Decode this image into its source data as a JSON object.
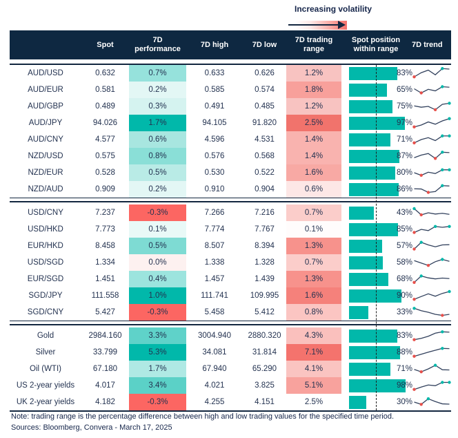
{
  "legend": {
    "label": "Increasing volatility"
  },
  "header": {
    "col_label": "",
    "col_spot": "Spot",
    "col_perf": "7D performance",
    "col_high": "7D high",
    "col_low": "7D low",
    "col_range": "7D trading range",
    "col_position": "Spot position within range",
    "col_trend": "7D trend"
  },
  "colors": {
    "header_bg": "#0e2841",
    "body_text": "#233250",
    "teal": "#01b8aa",
    "red": "#fd625e",
    "bar_fill": "#01b8aa",
    "spark_line": "#31405c",
    "spark_min_dot": "#e8504b",
    "spark_max_dot": "#01b8aa"
  },
  "chart_data": {
    "type": "table",
    "columns": [
      "",
      "Spot",
      "7D performance",
      "7D high",
      "7D low",
      "7D trading range",
      "Spot position within range",
      "7D trend"
    ],
    "groups": [
      {
        "rows": [
          {
            "label": "AUD/USD",
            "spot": "0.632",
            "perf": "0.7%",
            "perf_bg": "#96e2dc",
            "high": "0.633",
            "low": "0.626",
            "range": "1.2%",
            "range_bg": "#f8c3c1",
            "position_pct": 83,
            "position_label": "83%",
            "trend": [
              0.15,
              0.55,
              0.8,
              0.35,
              0.95,
              0.9
            ]
          },
          {
            "label": "AUD/EUR",
            "spot": "0.581",
            "perf": "0.2%",
            "perf_bg": "#e3f7f5",
            "high": "0.585",
            "low": "0.574",
            "range": "1.8%",
            "range_bg": "#f8a09b",
            "position_pct": 65,
            "position_label": "65%",
            "trend": [
              0.6,
              0.2,
              0.55,
              0.4,
              0.8,
              0.75
            ]
          },
          {
            "label": "AUD/GBP",
            "spot": "0.489",
            "perf": "0.3%",
            "perf_bg": "#d5f3f0",
            "high": "0.491",
            "low": "0.485",
            "range": "1.2%",
            "range_bg": "#f8c3c1",
            "position_pct": 75,
            "position_label": "75%",
            "trend": [
              0.55,
              0.42,
              0.5,
              0.18,
              0.7,
              0.8
            ]
          },
          {
            "label": "AUD/JPY",
            "spot": "94.026",
            "perf": "1.7%",
            "perf_bg": "#01b8aa",
            "high": "94.105",
            "low": "91.820",
            "range": "2.5%",
            "range_bg": "#f1736c",
            "position_pct": 97,
            "position_label": "97%",
            "trend": [
              0.12,
              0.3,
              0.6,
              0.38,
              0.7,
              0.92
            ]
          },
          {
            "label": "AUD/CNY",
            "spot": "4.577",
            "perf": "0.6%",
            "perf_bg": "#a8e6e0",
            "high": "4.596",
            "low": "4.531",
            "range": "1.4%",
            "range_bg": "#f9b3af",
            "position_pct": 71,
            "position_label": "71%",
            "trend": [
              0.18,
              0.5,
              0.68,
              0.4,
              0.85,
              0.85
            ]
          },
          {
            "label": "NZD/USD",
            "spot": "0.575",
            "perf": "0.8%",
            "perf_bg": "#8adfd7",
            "high": "0.576",
            "low": "0.568",
            "range": "1.4%",
            "range_bg": "#f9b3af",
            "position_pct": 87,
            "position_label": "87%",
            "trend": [
              0.35,
              0.6,
              0.75,
              0.28,
              0.88,
              0.84
            ]
          },
          {
            "label": "NZD/EUR",
            "spot": "0.528",
            "perf": "0.5%",
            "perf_bg": "#b9ebe6",
            "high": "0.530",
            "low": "0.522",
            "range": "1.6%",
            "range_bg": "#f8a9a4",
            "position_pct": 80,
            "position_label": "80%",
            "trend": [
              0.5,
              0.25,
              0.55,
              0.42,
              0.78,
              0.78
            ]
          },
          {
            "label": "NZD/AUD",
            "spot": "0.909",
            "perf": "0.2%",
            "perf_bg": "#e3f7f5",
            "high": "0.910",
            "low": "0.904",
            "range": "0.6%",
            "range_bg": "#fde7e6",
            "position_pct": 86,
            "position_label": "86%",
            "trend": [
              0.55,
              0.53,
              0.2,
              0.28,
              0.85,
              0.82
            ]
          }
        ]
      },
      {
        "rows": [
          {
            "label": "USD/CNY",
            "spot": "7.237",
            "perf": "-0.3%",
            "perf_bg": "#fc6662",
            "high": "7.266",
            "low": "7.216",
            "range": "0.7%",
            "range_bg": "#fbcdca",
            "position_pct": 43,
            "position_label": "43%",
            "trend": [
              0.9,
              0.3,
              0.5,
              0.38,
              0.45,
              0.35
            ]
          },
          {
            "label": "USD/HKD",
            "spot": "7.773",
            "perf": "0.1%",
            "perf_bg": "#e9f9f7",
            "high": "7.774",
            "low": "7.767",
            "range": "0.1%",
            "range_bg": "#fffcfc",
            "position_pct": 85,
            "position_label": "85%",
            "trend": [
              0.2,
              0.5,
              0.38,
              0.78,
              0.7,
              0.78
            ]
          },
          {
            "label": "EUR/HKD",
            "spot": "8.458",
            "perf": "0.5%",
            "perf_bg": "#7edbd3",
            "high": "8.507",
            "low": "8.394",
            "range": "1.3%",
            "range_bg": "#f7928c",
            "position_pct": 57,
            "position_label": "57%",
            "trend": [
              0.2,
              0.85,
              0.6,
              0.42,
              0.6,
              0.62
            ]
          },
          {
            "label": "USD/SGD",
            "spot": "1.334",
            "perf": "0.0%",
            "perf_bg": "#fdf1f0",
            "high": "1.338",
            "low": "1.328",
            "range": "0.7%",
            "range_bg": "#fbcdca",
            "position_pct": 58,
            "position_label": "58%",
            "trend": [
              0.68,
              0.45,
              0.22,
              0.58,
              0.8,
              0.62
            ]
          },
          {
            "label": "EUR/SGD",
            "spot": "1.451",
            "perf": "0.4%",
            "perf_bg": "#9ce4de",
            "high": "1.457",
            "low": "1.439",
            "range": "1.3%",
            "range_bg": "#f7928c",
            "position_pct": 68,
            "position_label": "68%",
            "trend": [
              0.18,
              0.8,
              0.62,
              0.52,
              0.6,
              0.55
            ]
          },
          {
            "label": "SGD/JPY",
            "spot": "111.558",
            "perf": "1.0%",
            "perf_bg": "#01b8aa",
            "high": "111.741",
            "low": "109.995",
            "range": "1.6%",
            "range_bg": "#f5817b",
            "position_pct": 90,
            "position_label": "90%",
            "trend": [
              0.15,
              0.42,
              0.68,
              0.45,
              0.72,
              0.9
            ]
          },
          {
            "label": "SGD/CNY",
            "spot": "5.427",
            "perf": "-0.3%",
            "perf_bg": "#fc6662",
            "high": "5.458",
            "low": "5.412",
            "range": "0.8%",
            "range_bg": "#fbc5c2",
            "position_pct": 33,
            "position_label": "33%",
            "trend": [
              0.88,
              0.65,
              0.5,
              0.3,
              0.2,
              0.3
            ]
          }
        ]
      },
      {
        "rows": [
          {
            "label": "Gold",
            "spot": "2984.160",
            "perf": "3.3%",
            "perf_bg": "#5fd2c9",
            "high": "3004.940",
            "low": "2880.320",
            "range": "4.3%",
            "range_bg": "#fac0bd",
            "position_pct": 83,
            "position_label": "83%",
            "trend": [
              0.12,
              0.25,
              0.45,
              0.75,
              0.88,
              0.85
            ]
          },
          {
            "label": "Silver",
            "spot": "33.799",
            "perf": "5.3%",
            "perf_bg": "#01b8aa",
            "high": "34.081",
            "low": "31.814",
            "range": "7.1%",
            "range_bg": "#f4736d",
            "position_pct": 88,
            "position_label": "88%",
            "trend": [
              0.12,
              0.32,
              0.52,
              0.7,
              0.88,
              0.86
            ]
          },
          {
            "label": "Oil (WTI)",
            "spot": "67.180",
            "perf": "1.7%",
            "perf_bg": "#afe9e4",
            "high": "67.940",
            "low": "65.290",
            "range": "4.1%",
            "range_bg": "#fac4c1",
            "position_pct": 71,
            "position_label": "71%",
            "trend": [
              0.45,
              0.22,
              0.5,
              0.85,
              0.42,
              0.4
            ]
          },
          {
            "label": "US 2-year yields",
            "spot": "4.017",
            "perf": "3.4%",
            "perf_bg": "#5bd1c7",
            "high": "4.021",
            "low": "3.825",
            "range": "5.1%",
            "range_bg": "#f8a29d",
            "position_pct": 98,
            "position_label": "98%",
            "trend": [
              0.12,
              0.35,
              0.55,
              0.48,
              0.8,
              0.8
            ]
          },
          {
            "label": "UK 2-year yields",
            "spot": "4.182",
            "perf": "-0.3%",
            "perf_bg": "#fc6662",
            "high": "4.255",
            "low": "4.151",
            "range": "2.5%",
            "range_bg": "#ffffff",
            "position_pct": 30,
            "position_label": "30%",
            "trend": [
              0.5,
              0.28,
              0.82,
              0.55,
              0.33,
              0.3
            ]
          }
        ]
      }
    ]
  },
  "footer": {
    "note": "Note: trading range is the percentage difference between high and low trading values for the specified time period.",
    "sources": "Sources: Bloomberg, Convera - March 17, 2025"
  }
}
